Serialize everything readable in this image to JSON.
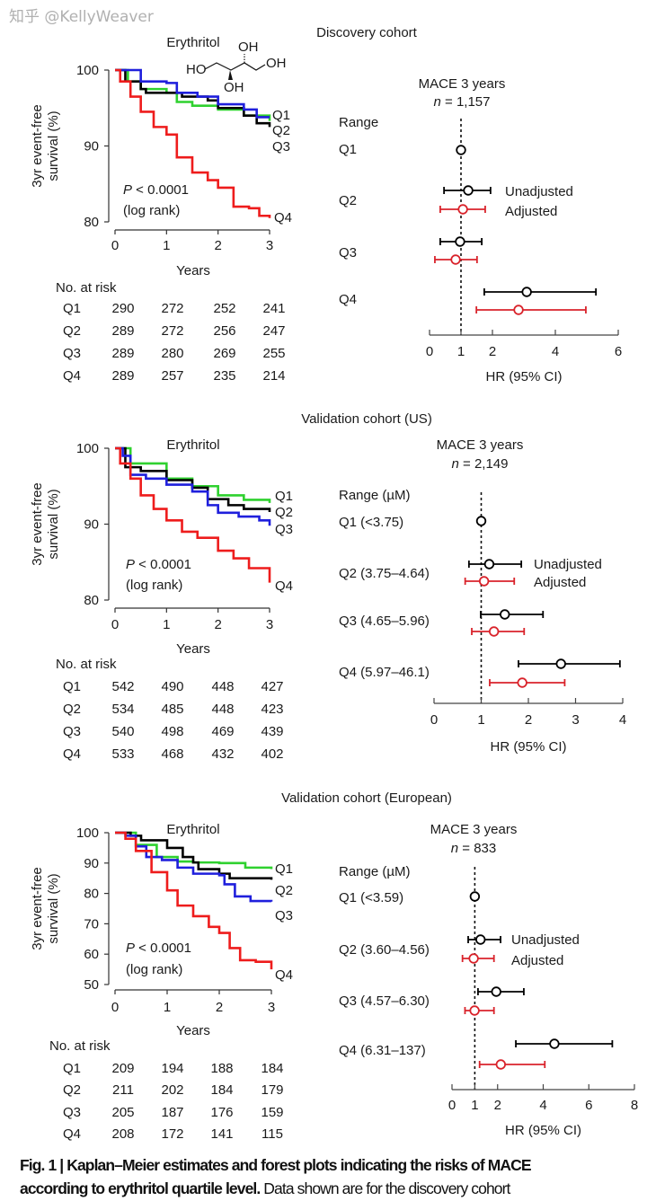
{
  "caption": {
    "line1_bold": "Fig. 1 | Kaplan–Meier estimates and forest plots indicating the risks of MACE",
    "line2_bold": "according to erythritol quartile level.",
    "line2_text": " Data shown are for the discovery cohort"
  },
  "watermark": "知乎 @KellyWeaver",
  "molecule_labels": [
    "HO",
    "OH",
    "OH",
    "OH"
  ],
  "chart_data": [
    {
      "type": "line",
      "step": true,
      "cohort_title": "Discovery cohort",
      "title": "Erythritol",
      "xlabel": "Years",
      "ylabel": [
        "3yr event-free",
        "survival (%)"
      ],
      "xlim": [
        0,
        3
      ],
      "ylim": [
        80,
        100
      ],
      "xticks": [
        0,
        1,
        2,
        3
      ],
      "yticks": [
        80,
        90,
        100
      ],
      "annotation": {
        "p": "P",
        "text": " < 0.0001",
        "line2": "(log rank)"
      },
      "series": [
        {
          "name": "Q1",
          "color": "#2fd12f",
          "points": [
            [
              0,
              100
            ],
            [
              0.25,
              98.5
            ],
            [
              0.5,
              97.5
            ],
            [
              1,
              97
            ],
            [
              1.2,
              95.8
            ],
            [
              1.5,
              95.3
            ],
            [
              2,
              94.8
            ],
            [
              2.5,
              94
            ],
            [
              3,
              93.3
            ]
          ]
        },
        {
          "name": "Q2",
          "color": "#000000",
          "points": [
            [
              0,
              100
            ],
            [
              0.2,
              98.5
            ],
            [
              0.5,
              97.5
            ],
            [
              0.6,
              97
            ],
            [
              1,
              97
            ],
            [
              1.3,
              96.5
            ],
            [
              1.8,
              96
            ],
            [
              2,
              95
            ],
            [
              2.5,
              94
            ],
            [
              2.75,
              93
            ],
            [
              3,
              92.5
            ]
          ]
        },
        {
          "name": "Q3",
          "color": "#1f1fdc",
          "points": [
            [
              0,
              100
            ],
            [
              0.5,
              98.5
            ],
            [
              1,
              98.3
            ],
            [
              1.2,
              97
            ],
            [
              1.6,
              96.5
            ],
            [
              2,
              95.5
            ],
            [
              2.5,
              94.8
            ],
            [
              2.75,
              93.8
            ],
            [
              3,
              93.8
            ]
          ]
        },
        {
          "name": "Q4",
          "color": "#ee1c1c",
          "points": [
            [
              0,
              100
            ],
            [
              0.1,
              98.5
            ],
            [
              0.3,
              96.5
            ],
            [
              0.5,
              94.5
            ],
            [
              0.75,
              92.5
            ],
            [
              1,
              91.5
            ],
            [
              1.2,
              88.5
            ],
            [
              1.5,
              86.5
            ],
            [
              1.8,
              85.5
            ],
            [
              2,
              84.5
            ],
            [
              2.3,
              82
            ],
            [
              2.6,
              81.8
            ],
            [
              2.8,
              80.8
            ],
            [
              3,
              80.5
            ]
          ]
        }
      ],
      "risk_table": {
        "title": "No. at risk",
        "rows": [
          {
            "label": "Q1",
            "values": [
              "290",
              "272",
              "252",
              "241"
            ]
          },
          {
            "label": "Q2",
            "values": [
              "289",
              "272",
              "256",
              "247"
            ]
          },
          {
            "label": "Q3",
            "values": [
              "289",
              "280",
              "269",
              "255"
            ]
          },
          {
            "label": "Q4",
            "values": [
              "289",
              "257",
              "235",
              "214"
            ]
          }
        ]
      }
    },
    {
      "type": "forest",
      "title": "MACE 3 years",
      "n_label": "n",
      "n_value": " = 1,157",
      "range_header": "Range",
      "xlabel": "HR (95% CI)",
      "xlim": [
        0,
        6
      ],
      "xticks": [
        0,
        1,
        2,
        4,
        6
      ],
      "reference": 1,
      "legend": [
        "Unadjusted",
        "Adjusted"
      ],
      "colors": [
        "#000000",
        "#d9232b"
      ],
      "rows": [
        {
          "label": "Q1",
          "unadjusted": {
            "hr": 1.0
          },
          "adjusted": null
        },
        {
          "label": "Q2",
          "unadjusted": {
            "hr": 1.23,
            "lo": 0.46,
            "hi": 1.94
          },
          "adjusted": {
            "hr": 1.06,
            "lo": 0.34,
            "hi": 1.77
          }
        },
        {
          "label": "Q3",
          "unadjusted": {
            "hr": 0.97,
            "lo": 0.34,
            "hi": 1.66
          },
          "adjusted": {
            "hr": 0.83,
            "lo": 0.17,
            "hi": 1.51
          }
        },
        {
          "label": "Q4",
          "unadjusted": {
            "hr": 3.09,
            "lo": 1.74,
            "hi": 5.29
          },
          "adjusted": {
            "hr": 2.83,
            "lo": 1.49,
            "hi": 4.97
          }
        }
      ]
    },
    {
      "type": "line",
      "step": true,
      "cohort_title": "Validation cohort (US)",
      "title": "Erythritol",
      "xlabel": "Years",
      "ylabel": [
        "3yr event-free",
        "survival (%)"
      ],
      "xlim": [
        0,
        3
      ],
      "ylim": [
        80,
        100
      ],
      "xticks": [
        0,
        1,
        2,
        3
      ],
      "yticks": [
        80,
        90,
        100
      ],
      "annotation": {
        "p": "P",
        "text": " < 0.0001",
        "line2": "(log rank)"
      },
      "series": [
        {
          "name": "Q1",
          "color": "#2fd12f",
          "points": [
            [
              0,
              100
            ],
            [
              0.3,
              98
            ],
            [
              1,
              96
            ],
            [
              1.5,
              95
            ],
            [
              2,
              93.8
            ],
            [
              2.5,
              93.2
            ],
            [
              3,
              92.8
            ]
          ]
        },
        {
          "name": "Q2",
          "color": "#000000",
          "points": [
            [
              0,
              100
            ],
            [
              0.2,
              97.5
            ],
            [
              0.5,
              97
            ],
            [
              1,
              95.8
            ],
            [
              1.5,
              94.8
            ],
            [
              1.8,
              93.3
            ],
            [
              2.2,
              92.5
            ],
            [
              2.5,
              92
            ],
            [
              3,
              91.6
            ]
          ]
        },
        {
          "name": "Q3",
          "color": "#1f1fdc",
          "points": [
            [
              0,
              100
            ],
            [
              0.15,
              99
            ],
            [
              0.3,
              96.5
            ],
            [
              0.6,
              96
            ],
            [
              1,
              95.2
            ],
            [
              1.5,
              94.3
            ],
            [
              1.8,
              92.5
            ],
            [
              2,
              91.5
            ],
            [
              2.4,
              91
            ],
            [
              2.8,
              90.5
            ],
            [
              3,
              89.8
            ]
          ]
        },
        {
          "name": "Q4",
          "color": "#ee1c1c",
          "points": [
            [
              0,
              100
            ],
            [
              0.1,
              98
            ],
            [
              0.3,
              96
            ],
            [
              0.5,
              93.8
            ],
            [
              0.75,
              92
            ],
            [
              1,
              90.5
            ],
            [
              1.3,
              89
            ],
            [
              1.6,
              88.2
            ],
            [
              2,
              86.5
            ],
            [
              2.3,
              85.5
            ],
            [
              2.6,
              84.2
            ],
            [
              3,
              82.3
            ]
          ]
        }
      ],
      "risk_table": {
        "title": "No. at risk",
        "rows": [
          {
            "label": "Q1",
            "values": [
              "542",
              "490",
              "448",
              "427"
            ]
          },
          {
            "label": "Q2",
            "values": [
              "534",
              "485",
              "448",
              "423"
            ]
          },
          {
            "label": "Q3",
            "values": [
              "540",
              "498",
              "469",
              "439"
            ]
          },
          {
            "label": "Q4",
            "values": [
              "533",
              "468",
              "432",
              "402"
            ]
          }
        ]
      }
    },
    {
      "type": "forest",
      "title": "MACE 3 years",
      "n_label": "n",
      "n_value": " = 2,149",
      "range_header": "Range (µM)",
      "xlabel": "HR (95% CI)",
      "xlim": [
        0,
        4
      ],
      "xticks": [
        0,
        1,
        2,
        3,
        4
      ],
      "reference": 1,
      "legend": [
        "Unadjusted",
        "Adjusted"
      ],
      "colors": [
        "#000000",
        "#d9232b"
      ],
      "rows": [
        {
          "label": "Q1 (<3.75)",
          "unadjusted": {
            "hr": 1.0
          },
          "adjusted": null
        },
        {
          "label": "Q2 (3.75–4.64)",
          "unadjusted": {
            "hr": 1.17,
            "lo": 0.74,
            "hi": 1.85
          },
          "adjusted": {
            "hr": 1.06,
            "lo": 0.66,
            "hi": 1.7
          }
        },
        {
          "label": "Q3 (4.65–5.96)",
          "unadjusted": {
            "hr": 1.5,
            "lo": 0.99,
            "hi": 2.31
          },
          "adjusted": {
            "hr": 1.27,
            "lo": 0.8,
            "hi": 1.91
          }
        },
        {
          "label": "Q4 (5.97–46.1)",
          "unadjusted": {
            "hr": 2.69,
            "lo": 1.79,
            "hi": 3.94
          },
          "adjusted": {
            "hr": 1.87,
            "lo": 1.18,
            "hi": 2.77
          }
        }
      ]
    },
    {
      "type": "line",
      "step": true,
      "cohort_title": "Validation cohort (European)",
      "title": "Erythritol",
      "xlabel": "Years",
      "ylabel": [
        "3yr event-free",
        "survival (%)"
      ],
      "xlim": [
        0,
        3
      ],
      "ylim": [
        50,
        100
      ],
      "xticks": [
        0,
        1,
        2,
        3
      ],
      "yticks": [
        50,
        60,
        70,
        80,
        90,
        100
      ],
      "annotation": {
        "p": "P",
        "text": " < 0.0001",
        "line2": "(log rank)"
      },
      "series": [
        {
          "name": "Q1",
          "color": "#2fd12f",
          "points": [
            [
              0,
              100
            ],
            [
              0.2,
              100
            ],
            [
              0.4,
              96
            ],
            [
              0.8,
              92
            ],
            [
              1.2,
              90.5
            ],
            [
              1.5,
              90.2
            ],
            [
              2,
              90
            ],
            [
              2.5,
              88.5
            ],
            [
              3,
              88
            ]
          ]
        },
        {
          "name": "Q2",
          "color": "#000000",
          "points": [
            [
              0,
              100
            ],
            [
              0.3,
              99
            ],
            [
              0.5,
              97.5
            ],
            [
              1,
              95
            ],
            [
              1.3,
              92
            ],
            [
              1.5,
              90.2
            ],
            [
              1.6,
              88
            ],
            [
              2,
              86.5
            ],
            [
              2.2,
              85
            ],
            [
              2.6,
              85
            ],
            [
              3,
              84.5
            ]
          ]
        },
        {
          "name": "Q3",
          "color": "#1f1fdc",
          "points": [
            [
              0,
              100
            ],
            [
              0.2,
              99
            ],
            [
              0.4,
              95.5
            ],
            [
              0.6,
              92
            ],
            [
              0.9,
              91
            ],
            [
              1.2,
              88.5
            ],
            [
              1.5,
              86.5
            ],
            [
              2,
              86
            ],
            [
              2.1,
              83
            ],
            [
              2.3,
              79
            ],
            [
              2.6,
              77.5
            ],
            [
              3,
              77.3
            ]
          ]
        },
        {
          "name": "Q4",
          "color": "#ee1c1c",
          "points": [
            [
              0,
              100
            ],
            [
              0.2,
              98
            ],
            [
              0.4,
              94
            ],
            [
              0.7,
              87
            ],
            [
              1,
              81
            ],
            [
              1.2,
              76
            ],
            [
              1.5,
              72.5
            ],
            [
              1.8,
              69
            ],
            [
              2,
              67
            ],
            [
              2.2,
              62
            ],
            [
              2.4,
              58
            ],
            [
              2.7,
              57.5
            ],
            [
              3,
              55
            ]
          ]
        }
      ],
      "risk_table": {
        "title": "No. at risk",
        "rows": [
          {
            "label": "Q1",
            "values": [
              "209",
              "194",
              "188",
              "184"
            ]
          },
          {
            "label": "Q2",
            "values": [
              "211",
              "202",
              "184",
              "179"
            ]
          },
          {
            "label": "Q3",
            "values": [
              "205",
              "187",
              "176",
              "159"
            ]
          },
          {
            "label": "Q4",
            "values": [
              "208",
              "172",
              "141",
              "115"
            ]
          }
        ]
      }
    },
    {
      "type": "forest",
      "title": "MACE 3 years",
      "n_label": "n",
      "n_value": " = 833",
      "range_header": "Range (µM)",
      "xlabel": "HR (95% CI)",
      "xlim": [
        0,
        8
      ],
      "xticks": [
        0,
        1,
        2,
        4,
        6,
        8
      ],
      "reference": 1,
      "legend": [
        "Unadjusted",
        "Adjusted"
      ],
      "colors": [
        "#000000",
        "#d9232b"
      ],
      "rows": [
        {
          "label": "Q1 (<3.59)",
          "unadjusted": {
            "hr": 1.0
          },
          "adjusted": null
        },
        {
          "label": "Q2 (3.60–4.56)",
          "unadjusted": {
            "hr": 1.25,
            "lo": 0.71,
            "hi": 2.13
          },
          "adjusted": {
            "hr": 0.95,
            "lo": 0.46,
            "hi": 1.84
          }
        },
        {
          "label": "Q3 (4.57–6.30)",
          "unadjusted": {
            "hr": 1.94,
            "lo": 1.14,
            "hi": 3.15
          },
          "adjusted": {
            "hr": 0.99,
            "lo": 0.57,
            "hi": 1.84
          }
        },
        {
          "label": "Q4 (6.31–137)",
          "unadjusted": {
            "hr": 4.49,
            "lo": 2.8,
            "hi": 7.03
          },
          "adjusted": {
            "hr": 2.14,
            "lo": 1.21,
            "hi": 4.07
          }
        }
      ]
    }
  ]
}
